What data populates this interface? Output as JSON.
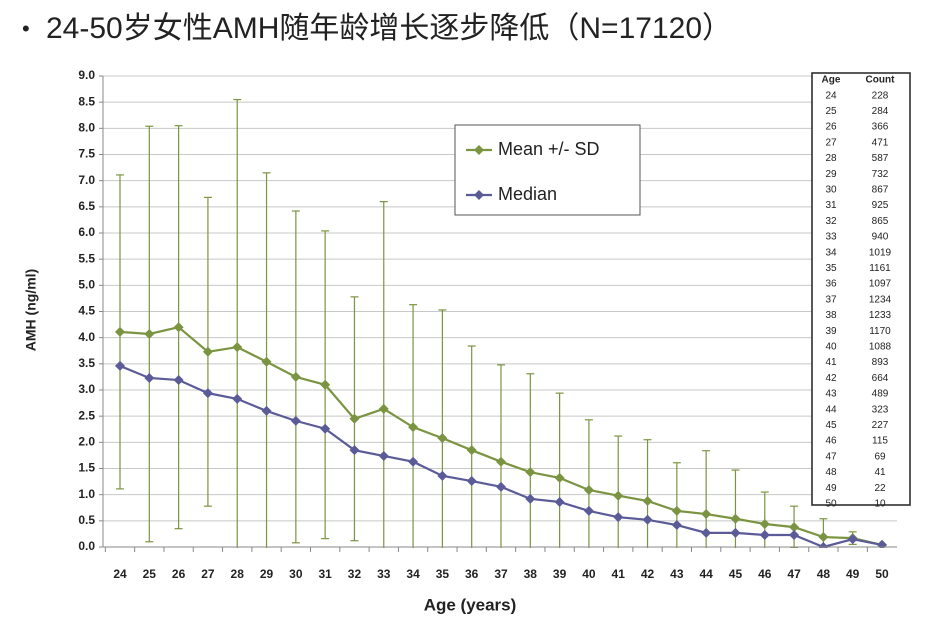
{
  "chart_data": {
    "type": "line",
    "title": "24-50岁女性AMH随年龄增长逐步降低（N=17120）",
    "x_label": "Age (years)",
    "y_label": "AMH (ng/ml)",
    "categories": [
      "24",
      "25",
      "26",
      "27",
      "28",
      "29",
      "30",
      "31",
      "32",
      "33",
      "34",
      "35",
      "36",
      "37",
      "38",
      "39",
      "40",
      "41",
      "42",
      "43",
      "44",
      "45",
      "46",
      "47",
      "48",
      "49",
      "50"
    ],
    "series": [
      {
        "name": "Mean +/- SD",
        "color": "#7b9441",
        "values": [
          4.11,
          4.07,
          4.2,
          3.73,
          3.82,
          3.54,
          3.25,
          3.1,
          2.45,
          2.64,
          2.29,
          2.08,
          1.85,
          1.63,
          1.43,
          1.32,
          1.09,
          0.98,
          0.88,
          0.69,
          0.63,
          0.54,
          0.44,
          0.38,
          0.19,
          0.17,
          0.04
        ],
        "errors": [
          3.0,
          3.97,
          3.85,
          2.95,
          4.73,
          3.61,
          3.17,
          2.94,
          2.33,
          3.96,
          2.34,
          2.45,
          1.99,
          1.85,
          1.88,
          1.62,
          1.34,
          1.14,
          1.17,
          0.92,
          1.21,
          0.93,
          0.61,
          0.4,
          0.35,
          0.12,
          0.0
        ]
      },
      {
        "name": "Median",
        "color": "#5b5b98",
        "values": [
          3.46,
          3.23,
          3.19,
          2.94,
          2.83,
          2.6,
          2.41,
          2.26,
          1.85,
          1.74,
          1.63,
          1.36,
          1.26,
          1.15,
          0.92,
          0.86,
          0.69,
          0.57,
          0.52,
          0.42,
          0.27,
          0.27,
          0.23,
          0.23,
          0.0,
          0.15,
          0.04
        ]
      }
    ],
    "ylim": [
      0,
      9
    ],
    "yticks": [
      {
        "value": 0,
        "label": "0.0"
      },
      0.5,
      {
        "value": 1,
        "label": "1.0"
      },
      1.5,
      {
        "value": 2,
        "label": "2.0"
      },
      2.5,
      {
        "value": 3,
        "label": "3.0"
      },
      3.5,
      {
        "value": 4,
        "label": "4.0"
      },
      4.5,
      {
        "value": 5,
        "label": "5.0"
      },
      5.5,
      {
        "value": 6,
        "label": "6.0"
      },
      6.5,
      {
        "value": 7,
        "label": "7.0"
      },
      7.5,
      {
        "value": 8,
        "label": "8.0"
      },
      8.5,
      {
        "value": 9,
        "label": "9.0"
      }
    ],
    "grid": true,
    "table": {
      "header": [
        "Age",
        "Count"
      ],
      "rows": [
        [
          "24",
          "228"
        ],
        [
          "25",
          "284"
        ],
        [
          "26",
          "366"
        ],
        [
          "27",
          "471"
        ],
        [
          "28",
          "587"
        ],
        [
          "29",
          "732"
        ],
        [
          "30",
          "867"
        ],
        [
          "31",
          "925"
        ],
        [
          "32",
          "865"
        ],
        [
          "33",
          "940"
        ],
        [
          "34",
          "1019"
        ],
        [
          "35",
          "1161"
        ],
        [
          "36",
          "1097"
        ],
        [
          "37",
          "1234"
        ],
        [
          "38",
          "1233"
        ],
        [
          "39",
          "1170"
        ],
        [
          "40",
          "1088"
        ],
        [
          "41",
          "893"
        ],
        [
          "42",
          "664"
        ],
        [
          "43",
          "489"
        ],
        [
          "44",
          "323"
        ],
        [
          "45",
          "227"
        ],
        [
          "46",
          "115"
        ],
        [
          "47",
          "69"
        ],
        [
          "48",
          "41"
        ],
        [
          "49",
          "22"
        ],
        [
          "50",
          "10"
        ]
      ]
    }
  }
}
